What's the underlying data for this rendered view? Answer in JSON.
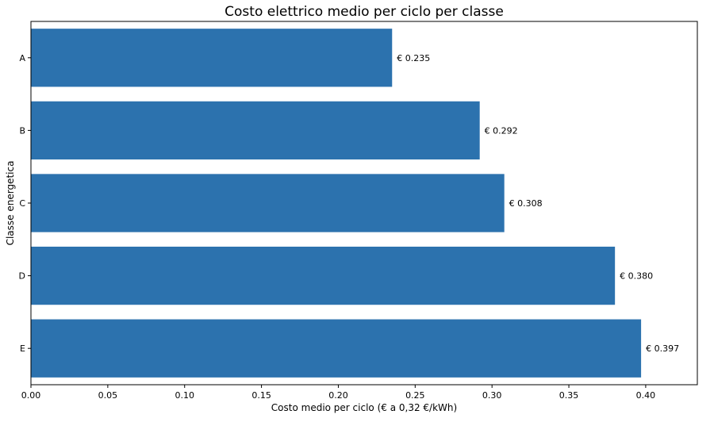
{
  "chart_data": {
    "type": "bar",
    "orientation": "horizontal",
    "title": "Costo elettrico medio per ciclo per classe",
    "xlabel": "Costo medio per ciclo (€ a 0,32 €/kWh)",
    "ylabel": "Classe energetica",
    "categories": [
      "A",
      "B",
      "C",
      "D",
      "E"
    ],
    "values": [
      0.235,
      0.292,
      0.308,
      0.38,
      0.397
    ],
    "value_labels": [
      "€ 0.235",
      "€ 0.292",
      "€ 0.308",
      "€ 0.380",
      "€ 0.397"
    ],
    "xlim": [
      0,
      0.4336
    ],
    "xticks": [
      0.0,
      0.05,
      0.1,
      0.15,
      0.2,
      0.25,
      0.3,
      0.35,
      0.4
    ],
    "xtick_labels": [
      "0.00",
      "0.05",
      "0.10",
      "0.15",
      "0.20",
      "0.25",
      "0.30",
      "0.35",
      "0.40"
    ],
    "bar_color": "#2c72ae",
    "grid": false,
    "legend": "none"
  }
}
